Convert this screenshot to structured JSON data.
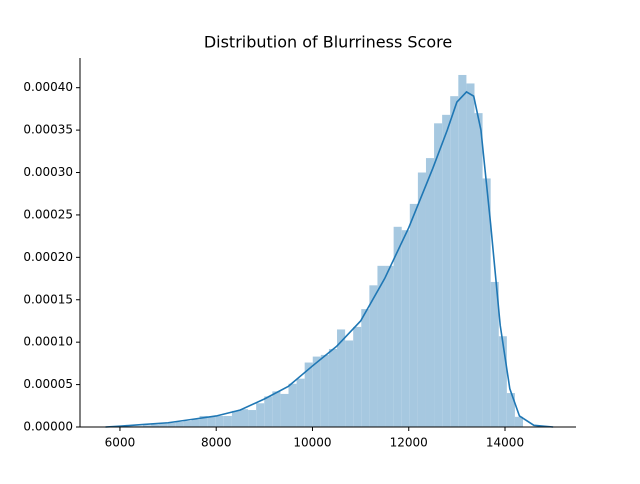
{
  "chart_data": {
    "type": "histogram",
    "title": "Distribution of Blurriness Score",
    "bins": [
      5974,
      6142,
      6310,
      6478,
      6646,
      6814,
      6982,
      7150,
      7318,
      7486,
      7654,
      7822,
      7990,
      8158,
      8326,
      8494,
      8662,
      8830,
      8998,
      9166,
      9334,
      9502,
      9670,
      9838,
      10006,
      10174,
      10342,
      10510,
      10678,
      10846,
      11014,
      11182,
      11350,
      11518,
      11686,
      11854,
      12022,
      12190,
      12358,
      12526,
      12694,
      12862,
      13030,
      13198,
      13366,
      13534,
      13702,
      13870,
      14038,
      14206,
      14374
    ],
    "values": [
      5e-07,
      1e-06,
      1e-06,
      2e-06,
      3e-06,
      4e-06,
      5e-06,
      6e-06,
      7e-06,
      9e-06,
      1.3e-05,
      1.2e-05,
      1.3e-05,
      1.3e-05,
      1.9e-05,
      2.1e-05,
      2e-05,
      2.8e-05,
      3.6e-05,
      4.2e-05,
      3.9e-05,
      5.1e-05,
      5.7e-05,
      7.6e-05,
      8.3e-05,
      8.5e-05,
      9.2e-05,
      0.000115,
      0.000102,
      0.000118,
      0.000139,
      0.000167,
      0.00019,
      0.00019,
      0.000236,
      0.000232,
      0.000263,
      0.0003,
      0.000317,
      0.000358,
      0.000368,
      0.00039,
      0.000415,
      0.000405,
      0.00037,
      0.000293,
      0.000171,
      0.000107,
      4e-05,
      1.2e-05
    ],
    "color": "#a6c8e0",
    "lines": [
      {
        "color": "#1f77b4",
        "x": [
          5700,
          6000,
          6500,
          7000,
          7500,
          8000,
          8500,
          9000,
          9500,
          10000,
          10500,
          11000,
          11500,
          12000,
          12500,
          12800,
          13000,
          13200,
          13350,
          13500,
          13700,
          13900,
          14100,
          14300,
          14600,
          15000
        ],
        "values": [
          0,
          1e-06,
          3e-06,
          5e-06,
          9e-06,
          1.3e-05,
          2e-05,
          3.3e-05,
          4.8e-05,
          7.2e-05,
          9.5e-05,
          0.000125,
          0.000175,
          0.000235,
          0.000305,
          0.00035,
          0.000383,
          0.000395,
          0.00039,
          0.00035,
          0.00024,
          0.00012,
          4.5e-05,
          1.3e-05,
          2e-06,
          0
        ]
      }
    ],
    "xlim": [
      5170,
      15475
    ],
    "ylim": [
      0,
      0.000435
    ],
    "xticks": [
      6000,
      8000,
      10000,
      12000,
      14000
    ],
    "yticks": [
      {
        "value": 0,
        "label": "0.00000"
      },
      {
        "value": 5e-05,
        "label": "0.00005"
      },
      {
        "value": 0.0001,
        "label": "0.00010"
      },
      {
        "value": 0.00015,
        "label": "0.00015"
      },
      {
        "value": 0.0002,
        "label": "0.00020"
      },
      {
        "value": 0.00025,
        "label": "0.00025"
      },
      {
        "value": 0.0003,
        "label": "0.00030"
      },
      {
        "value": 0.00035,
        "label": "0.00035"
      },
      {
        "value": 0.0004,
        "label": "0.00040"
      }
    ]
  }
}
